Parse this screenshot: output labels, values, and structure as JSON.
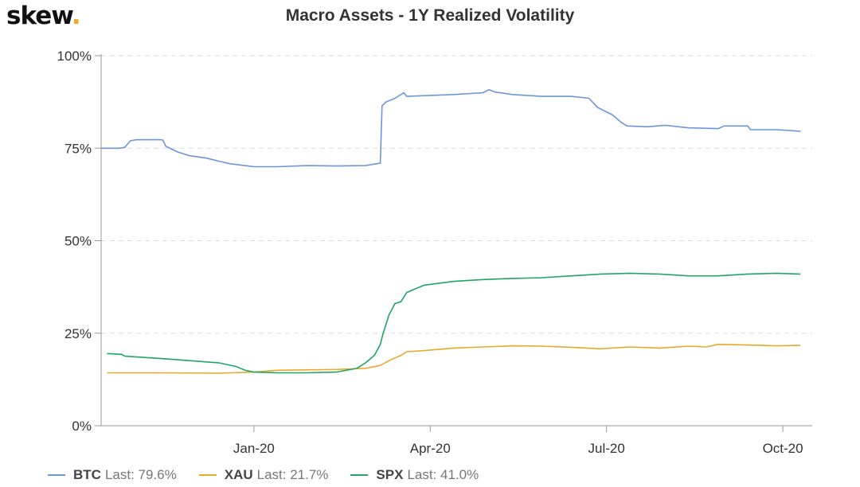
{
  "logo": {
    "text": "skew",
    "dot": "."
  },
  "chart_data": {
    "type": "line",
    "title": "Macro Assets - 1Y Realized Volatility",
    "xlabel": "",
    "ylabel": "",
    "ylim": [
      0,
      100
    ],
    "xlim": [
      0,
      12.1
    ],
    "yticks": [
      0,
      25,
      50,
      75,
      100
    ],
    "ytick_labels": [
      "0%",
      "25%",
      "50%",
      "75%",
      "100%"
    ],
    "xticks": [
      2.6,
      5.6,
      8.6,
      11.6
    ],
    "xtick_labels": [
      "Jan-20",
      "Apr-20",
      "Jul-20",
      "Oct-20"
    ],
    "grid": "horizontal-dashed",
    "legend_position": "bottom-left",
    "series": [
      {
        "name": "BTC",
        "last_label": "Last: 79.6%",
        "color": "#6a96dc",
        "points": [
          [
            0,
            75
          ],
          [
            0.3,
            75
          ],
          [
            0.4,
            75.2
          ],
          [
            0.5,
            77
          ],
          [
            0.6,
            77.3
          ],
          [
            1.0,
            77.3
          ],
          [
            1.05,
            77.2
          ],
          [
            1.1,
            75.5
          ],
          [
            1.3,
            74
          ],
          [
            1.5,
            73
          ],
          [
            1.8,
            72.3
          ],
          [
            2.0,
            71.5
          ],
          [
            2.2,
            70.8
          ],
          [
            2.5,
            70.2
          ],
          [
            2.6,
            70
          ],
          [
            3.0,
            70
          ],
          [
            3.5,
            70.3
          ],
          [
            4.0,
            70.2
          ],
          [
            4.5,
            70.3
          ],
          [
            4.75,
            71
          ],
          [
            4.78,
            86.5
          ],
          [
            4.85,
            87.5
          ],
          [
            5.0,
            88.5
          ],
          [
            5.15,
            90
          ],
          [
            5.2,
            89
          ],
          [
            5.5,
            89.2
          ],
          [
            6.0,
            89.5
          ],
          [
            6.5,
            90
          ],
          [
            6.6,
            90.8
          ],
          [
            6.7,
            90.2
          ],
          [
            7.0,
            89.5
          ],
          [
            7.5,
            89
          ],
          [
            8.0,
            89
          ],
          [
            8.3,
            88.5
          ],
          [
            8.45,
            86
          ],
          [
            8.7,
            84
          ],
          [
            8.85,
            82
          ],
          [
            8.95,
            81
          ],
          [
            9.3,
            80.8
          ],
          [
            9.6,
            81.2
          ],
          [
            10.0,
            80.5
          ],
          [
            10.5,
            80.3
          ],
          [
            10.6,
            81
          ],
          [
            11.0,
            81
          ],
          [
            11.05,
            80
          ],
          [
            11.5,
            80
          ],
          [
            11.9,
            79.6
          ]
        ]
      },
      {
        "name": "XAU",
        "last_label": "Last: 21.7%",
        "color": "#e8a92c",
        "points": [
          [
            0.1,
            14.3
          ],
          [
            1.0,
            14.3
          ],
          [
            2.0,
            14.2
          ],
          [
            2.6,
            14.5
          ],
          [
            3.0,
            15
          ],
          [
            4.0,
            15.2
          ],
          [
            4.5,
            15.5
          ],
          [
            4.75,
            16.3
          ],
          [
            4.95,
            18
          ],
          [
            5.1,
            19
          ],
          [
            5.2,
            20
          ],
          [
            5.5,
            20.3
          ],
          [
            6.0,
            21
          ],
          [
            6.5,
            21.3
          ],
          [
            7.0,
            21.6
          ],
          [
            7.5,
            21.5
          ],
          [
            8.0,
            21.2
          ],
          [
            8.5,
            20.8
          ],
          [
            9.0,
            21.3
          ],
          [
            9.5,
            21
          ],
          [
            10.0,
            21.5
          ],
          [
            10.3,
            21.3
          ],
          [
            10.5,
            22
          ],
          [
            11.0,
            21.8
          ],
          [
            11.5,
            21.6
          ],
          [
            11.9,
            21.7
          ]
        ]
      },
      {
        "name": "SPX",
        "last_label": "Last: 41.0%",
        "color": "#20a565",
        "points": [
          [
            0.1,
            19.5
          ],
          [
            0.35,
            19.3
          ],
          [
            0.4,
            18.8
          ],
          [
            1.0,
            18.2
          ],
          [
            1.5,
            17.6
          ],
          [
            2.0,
            17
          ],
          [
            2.3,
            16
          ],
          [
            2.45,
            15
          ],
          [
            2.6,
            14.5
          ],
          [
            3.0,
            14.3
          ],
          [
            3.5,
            14.3
          ],
          [
            4.0,
            14.5
          ],
          [
            4.35,
            15.5
          ],
          [
            4.5,
            17
          ],
          [
            4.65,
            19
          ],
          [
            4.75,
            22
          ],
          [
            4.8,
            25
          ],
          [
            4.9,
            30
          ],
          [
            5.0,
            33
          ],
          [
            5.1,
            33.5
          ],
          [
            5.2,
            36
          ],
          [
            5.35,
            37
          ],
          [
            5.5,
            38
          ],
          [
            6.0,
            39
          ],
          [
            6.5,
            39.5
          ],
          [
            7.0,
            39.8
          ],
          [
            7.5,
            40
          ],
          [
            8.0,
            40.5
          ],
          [
            8.5,
            41
          ],
          [
            9.0,
            41.2
          ],
          [
            9.5,
            41
          ],
          [
            10.0,
            40.5
          ],
          [
            10.5,
            40.5
          ],
          [
            11.0,
            41
          ],
          [
            11.5,
            41.2
          ],
          [
            11.9,
            41
          ]
        ]
      }
    ]
  }
}
